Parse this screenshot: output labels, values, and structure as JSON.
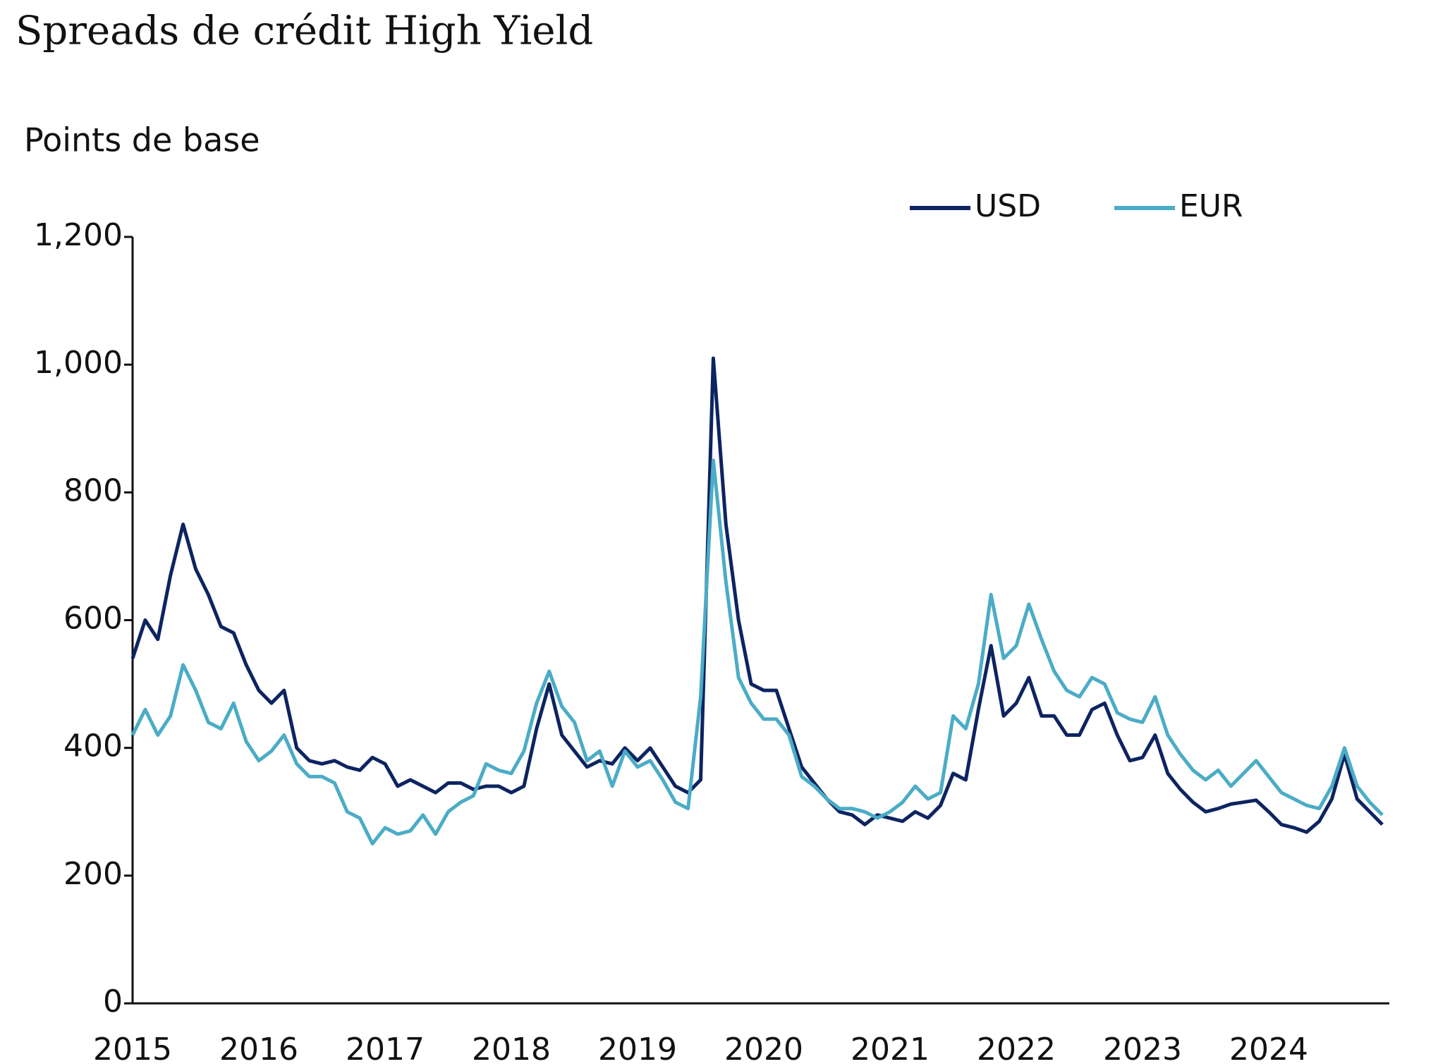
{
  "chart_data": {
    "type": "line",
    "title": "Spreads de crédit High Yield",
    "y_label": "Points de base",
    "legend": "top-right",
    "grid": false,
    "xlim": [
      2015,
      2025
    ],
    "xticks": [
      2015,
      2016,
      2017,
      2018,
      2019,
      2020,
      2021,
      2022,
      2023,
      2024
    ],
    "ylim": [
      0,
      1200
    ],
    "yticks": [
      0,
      200,
      400,
      600,
      800,
      {
        "value": 1000,
        "label": "1,000"
      },
      {
        "value": 1200,
        "label": "1,200"
      }
    ],
    "x": [
      2015.0,
      2015.1,
      2015.2,
      2015.3,
      2015.4,
      2015.5,
      2015.6,
      2015.7,
      2015.8,
      2015.9,
      2016.0,
      2016.1,
      2016.2,
      2016.3,
      2016.4,
      2016.5,
      2016.6,
      2016.7,
      2016.8,
      2016.9,
      2017.0,
      2017.1,
      2017.2,
      2017.3,
      2017.4,
      2017.5,
      2017.6,
      2017.7,
      2017.8,
      2017.9,
      2018.0,
      2018.1,
      2018.2,
      2018.3,
      2018.4,
      2018.5,
      2018.6,
      2018.7,
      2018.8,
      2018.9,
      2019.0,
      2019.1,
      2019.2,
      2019.3,
      2019.4,
      2019.5,
      2019.6,
      2019.7,
      2019.8,
      2019.9,
      2020.0,
      2020.1,
      2020.2,
      2020.3,
      2020.4,
      2020.5,
      2020.6,
      2020.7,
      2020.8,
      2020.9,
      2021.0,
      2021.1,
      2021.2,
      2021.3,
      2021.4,
      2021.5,
      2021.6,
      2021.7,
      2021.8,
      2021.9,
      2022.0,
      2022.1,
      2022.2,
      2022.3,
      2022.4,
      2022.5,
      2022.6,
      2022.7,
      2022.8,
      2022.9,
      2023.0,
      2023.1,
      2023.2,
      2023.3,
      2023.4,
      2023.5,
      2023.6,
      2023.7,
      2023.8,
      2023.9,
      2024.0,
      2024.1,
      2024.2,
      2024.3,
      2024.4,
      2024.5,
      2024.6,
      2024.7,
      2024.8,
      2024.9
    ],
    "series": [
      {
        "name": "USD",
        "color": "#0d2461",
        "values": [
          540,
          600,
          570,
          670,
          750,
          680,
          640,
          590,
          580,
          530,
          490,
          470,
          490,
          400,
          380,
          375,
          380,
          370,
          365,
          385,
          375,
          340,
          350,
          340,
          330,
          345,
          345,
          335,
          340,
          340,
          330,
          340,
          430,
          500,
          420,
          395,
          370,
          380,
          375,
          400,
          380,
          400,
          370,
          340,
          330,
          350,
          1010,
          750,
          600,
          500,
          490,
          490,
          430,
          370,
          345,
          320,
          300,
          295,
          280,
          295,
          290,
          285,
          300,
          290,
          310,
          360,
          350,
          460,
          560,
          450,
          470,
          510,
          450,
          450,
          420,
          420,
          460,
          470,
          420,
          380,
          385,
          420,
          360,
          335,
          315,
          300,
          305,
          312,
          315,
          318,
          300,
          280,
          275,
          268,
          285,
          320,
          390,
          320,
          300,
          280
        ]
      },
      {
        "name": "EUR",
        "color": "#4bacc6",
        "values": [
          420,
          460,
          420,
          450,
          530,
          490,
          440,
          430,
          470,
          410,
          380,
          395,
          420,
          375,
          355,
          355,
          345,
          300,
          290,
          250,
          275,
          265,
          270,
          295,
          265,
          300,
          315,
          325,
          375,
          365,
          360,
          395,
          470,
          520,
          465,
          440,
          380,
          395,
          340,
          395,
          370,
          380,
          350,
          315,
          305,
          480,
          850,
          660,
          510,
          470,
          445,
          445,
          420,
          355,
          340,
          320,
          305,
          305,
          300,
          290,
          300,
          315,
          340,
          320,
          330,
          450,
          430,
          500,
          640,
          540,
          560,
          625,
          570,
          520,
          490,
          480,
          510,
          500,
          455,
          445,
          440,
          480,
          420,
          390,
          365,
          350,
          365,
          340,
          360,
          380,
          355,
          330,
          320,
          310,
          305,
          340,
          400,
          340,
          315,
          295
        ]
      }
    ]
  }
}
